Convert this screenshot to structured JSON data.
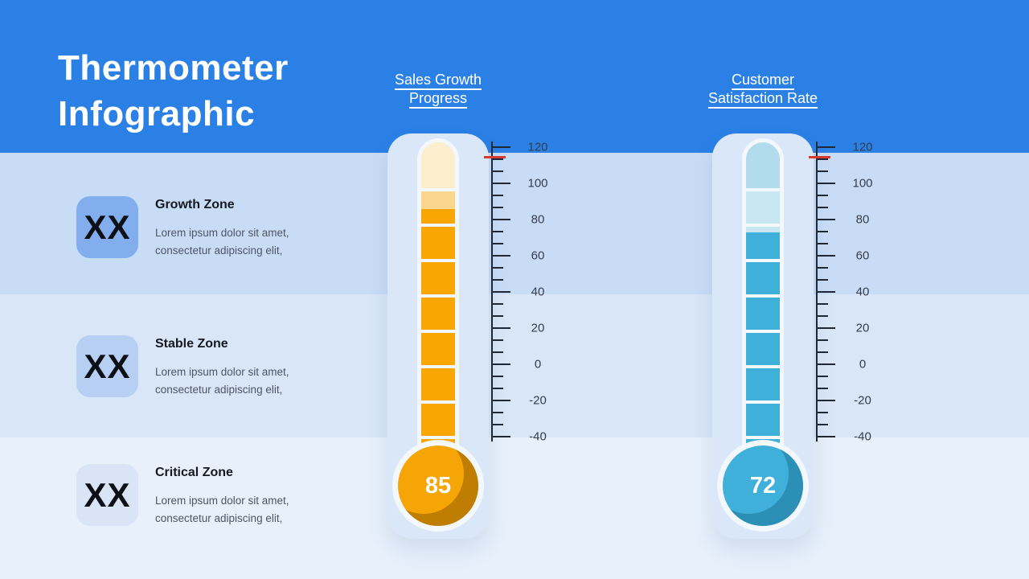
{
  "title": {
    "line1": "Thermometer",
    "line2": "Infographic"
  },
  "zones": [
    {
      "icon_label": "XX",
      "title": "Growth Zone",
      "desc": [
        "Lorem ipsum dolor sit amet,",
        "consectetur adipiscing elit,"
      ],
      "icon_bg": "#82aeee",
      "band_bg": "#c9dcf6"
    },
    {
      "icon_label": "XX",
      "title": "Stable Zone",
      "desc": [
        "Lorem ipsum dolor sit amet,",
        "consectetur adipiscing elit,"
      ],
      "icon_bg": "#b6cff2",
      "band_bg": "#d9e6f8"
    },
    {
      "icon_label": "XX",
      "title": "Critical Zone",
      "desc": [
        "Lorem ipsum dolor sit amet,",
        "consectetur adipiscing elit,"
      ],
      "icon_bg": "#d9e5f6",
      "band_bg": "#e7f0fb"
    }
  ],
  "thermometers": [
    {
      "label": [
        "Sales Growth",
        "Progress"
      ],
      "value": 85,
      "value_label": "85",
      "fill_color": "#f9a602",
      "cap_color": "#fdeecd",
      "empty_color": "#fbd68f",
      "bulb_color": "#f6a506",
      "bulb_shadow_color": "#bf7e02"
    },
    {
      "label": [
        "Customer",
        "Satisfaction Rate"
      ],
      "value": 72,
      "value_label": "72",
      "fill_color": "#3fb0d9",
      "cap_color": "#b2dcec",
      "empty_color": "#c6e6f1",
      "bulb_color": "#3fb0d9",
      "bulb_shadow_color": "#2b8fb6"
    }
  ],
  "scale": {
    "labels": [
      "120",
      "100",
      "80",
      "60",
      "40",
      "20",
      "0",
      "-20",
      "-40"
    ],
    "max": 120,
    "min": -40,
    "step": 20
  },
  "theme": {
    "header_bg": "#2b80e6",
    "band4_bg": "#e7f0fb",
    "container_bg": "#d9e7f8",
    "tube_white": "#f3f8fd",
    "axis_color": "#1f2834",
    "scale_label_color": "#333d4c",
    "marker_color": "#d63a2f",
    "title_color": "#ffffff",
    "zone_title_color": "#15191f",
    "zone_desc_color": "#4c5663",
    "zone_icon_color": "#0d1117",
    "value_color": "#ffffff"
  },
  "chart_data": {
    "type": "bar",
    "style": "thermometer-gauge",
    "title": "Thermometer Infographic",
    "categories": [
      "Sales Growth Progress",
      "Customer Satisfaction Rate"
    ],
    "values": [
      85,
      72
    ],
    "series_colors": [
      "#f9a602",
      "#3fb0d9"
    ],
    "xlabel": "",
    "ylabel": "",
    "ylim": [
      -40,
      120
    ],
    "yticks": [
      120,
      100,
      80,
      60,
      40,
      20,
      0,
      -20,
      -40
    ],
    "grid": false,
    "legend": "none"
  }
}
